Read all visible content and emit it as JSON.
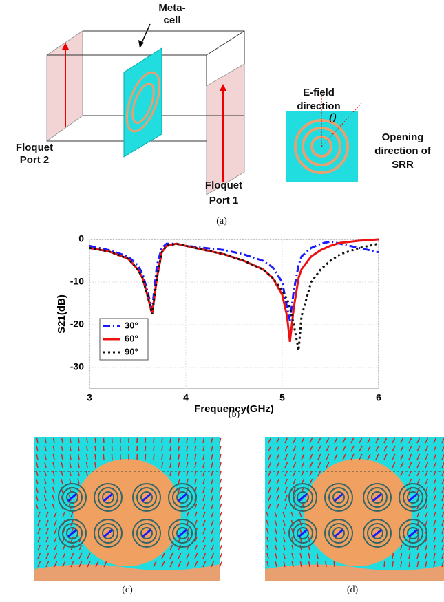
{
  "panel_a": {
    "meta_cell": [
      "Meta-",
      "cell"
    ],
    "port2": [
      "Floquet",
      "Port 2"
    ],
    "port1": [
      "Floquet",
      "Port 1"
    ],
    "efield": [
      "E-field",
      "direction"
    ],
    "theta": "θ",
    "opening": [
      "Opening",
      "direction of",
      "SRR"
    ],
    "caption": "(a)"
  },
  "chart_data": {
    "type": "line",
    "caption": "(b)",
    "xlabel": "Frequency(GHz)",
    "ylabel": "S21(dB)",
    "x": [
      3,
      3.2,
      3.4,
      3.5,
      3.55,
      3.6,
      3.65,
      3.7,
      3.75,
      3.8,
      3.9,
      4,
      4.2,
      4.4,
      4.6,
      4.8,
      4.9,
      5,
      5.05,
      5.08,
      5.12,
      5.17,
      5.2,
      5.3,
      5.4,
      5.5,
      5.6,
      5.8,
      6
    ],
    "series": [
      {
        "name": "30°",
        "color": "#1a1aff",
        "dash": "dash-dot",
        "values": [
          -1.5,
          -2.5,
          -4,
          -6,
          -8,
          -12,
          -16.5,
          -6,
          -2,
          -1,
          -1,
          -1.5,
          -2,
          -2.5,
          -3.5,
          -5,
          -6.5,
          -10,
          -16,
          -19,
          -12,
          -6,
          -4,
          -2,
          -1,
          -0.5,
          -1,
          -2,
          -3
        ]
      },
      {
        "name": "60°",
        "color": "#ee1111",
        "dash": "solid",
        "values": [
          -2,
          -2.8,
          -4.5,
          -7,
          -9,
          -13,
          -17.5,
          -9,
          -3,
          -1.5,
          -1,
          -1.5,
          -2.5,
          -3.5,
          -5,
          -7,
          -9,
          -13,
          -18,
          -24,
          -16,
          -9,
          -7,
          -4,
          -2.5,
          -1.5,
          -0.8,
          -0.3,
          0
        ]
      },
      {
        "name": "90°",
        "color": "#111111",
        "dash": "dot",
        "values": [
          -2,
          -2.8,
          -4.5,
          -7,
          -9,
          -13,
          -17.5,
          -9,
          -3,
          -1.5,
          -1,
          -1.5,
          -2.5,
          -3.5,
          -5,
          -7,
          -9,
          -12,
          -14,
          -16,
          -20,
          -26,
          -18,
          -10,
          -7,
          -5,
          -3.5,
          -2,
          -1
        ]
      }
    ],
    "xlim": [
      3,
      6
    ],
    "xticks": [
      3,
      4,
      5,
      6
    ],
    "ylim": [
      -35,
      0
    ],
    "yticks": [
      0,
      -10,
      -20,
      -30
    ],
    "grid": true,
    "legend": "lower-left"
  },
  "panel_c": {
    "caption": "(c)"
  },
  "panel_d": {
    "caption": "(d)"
  }
}
